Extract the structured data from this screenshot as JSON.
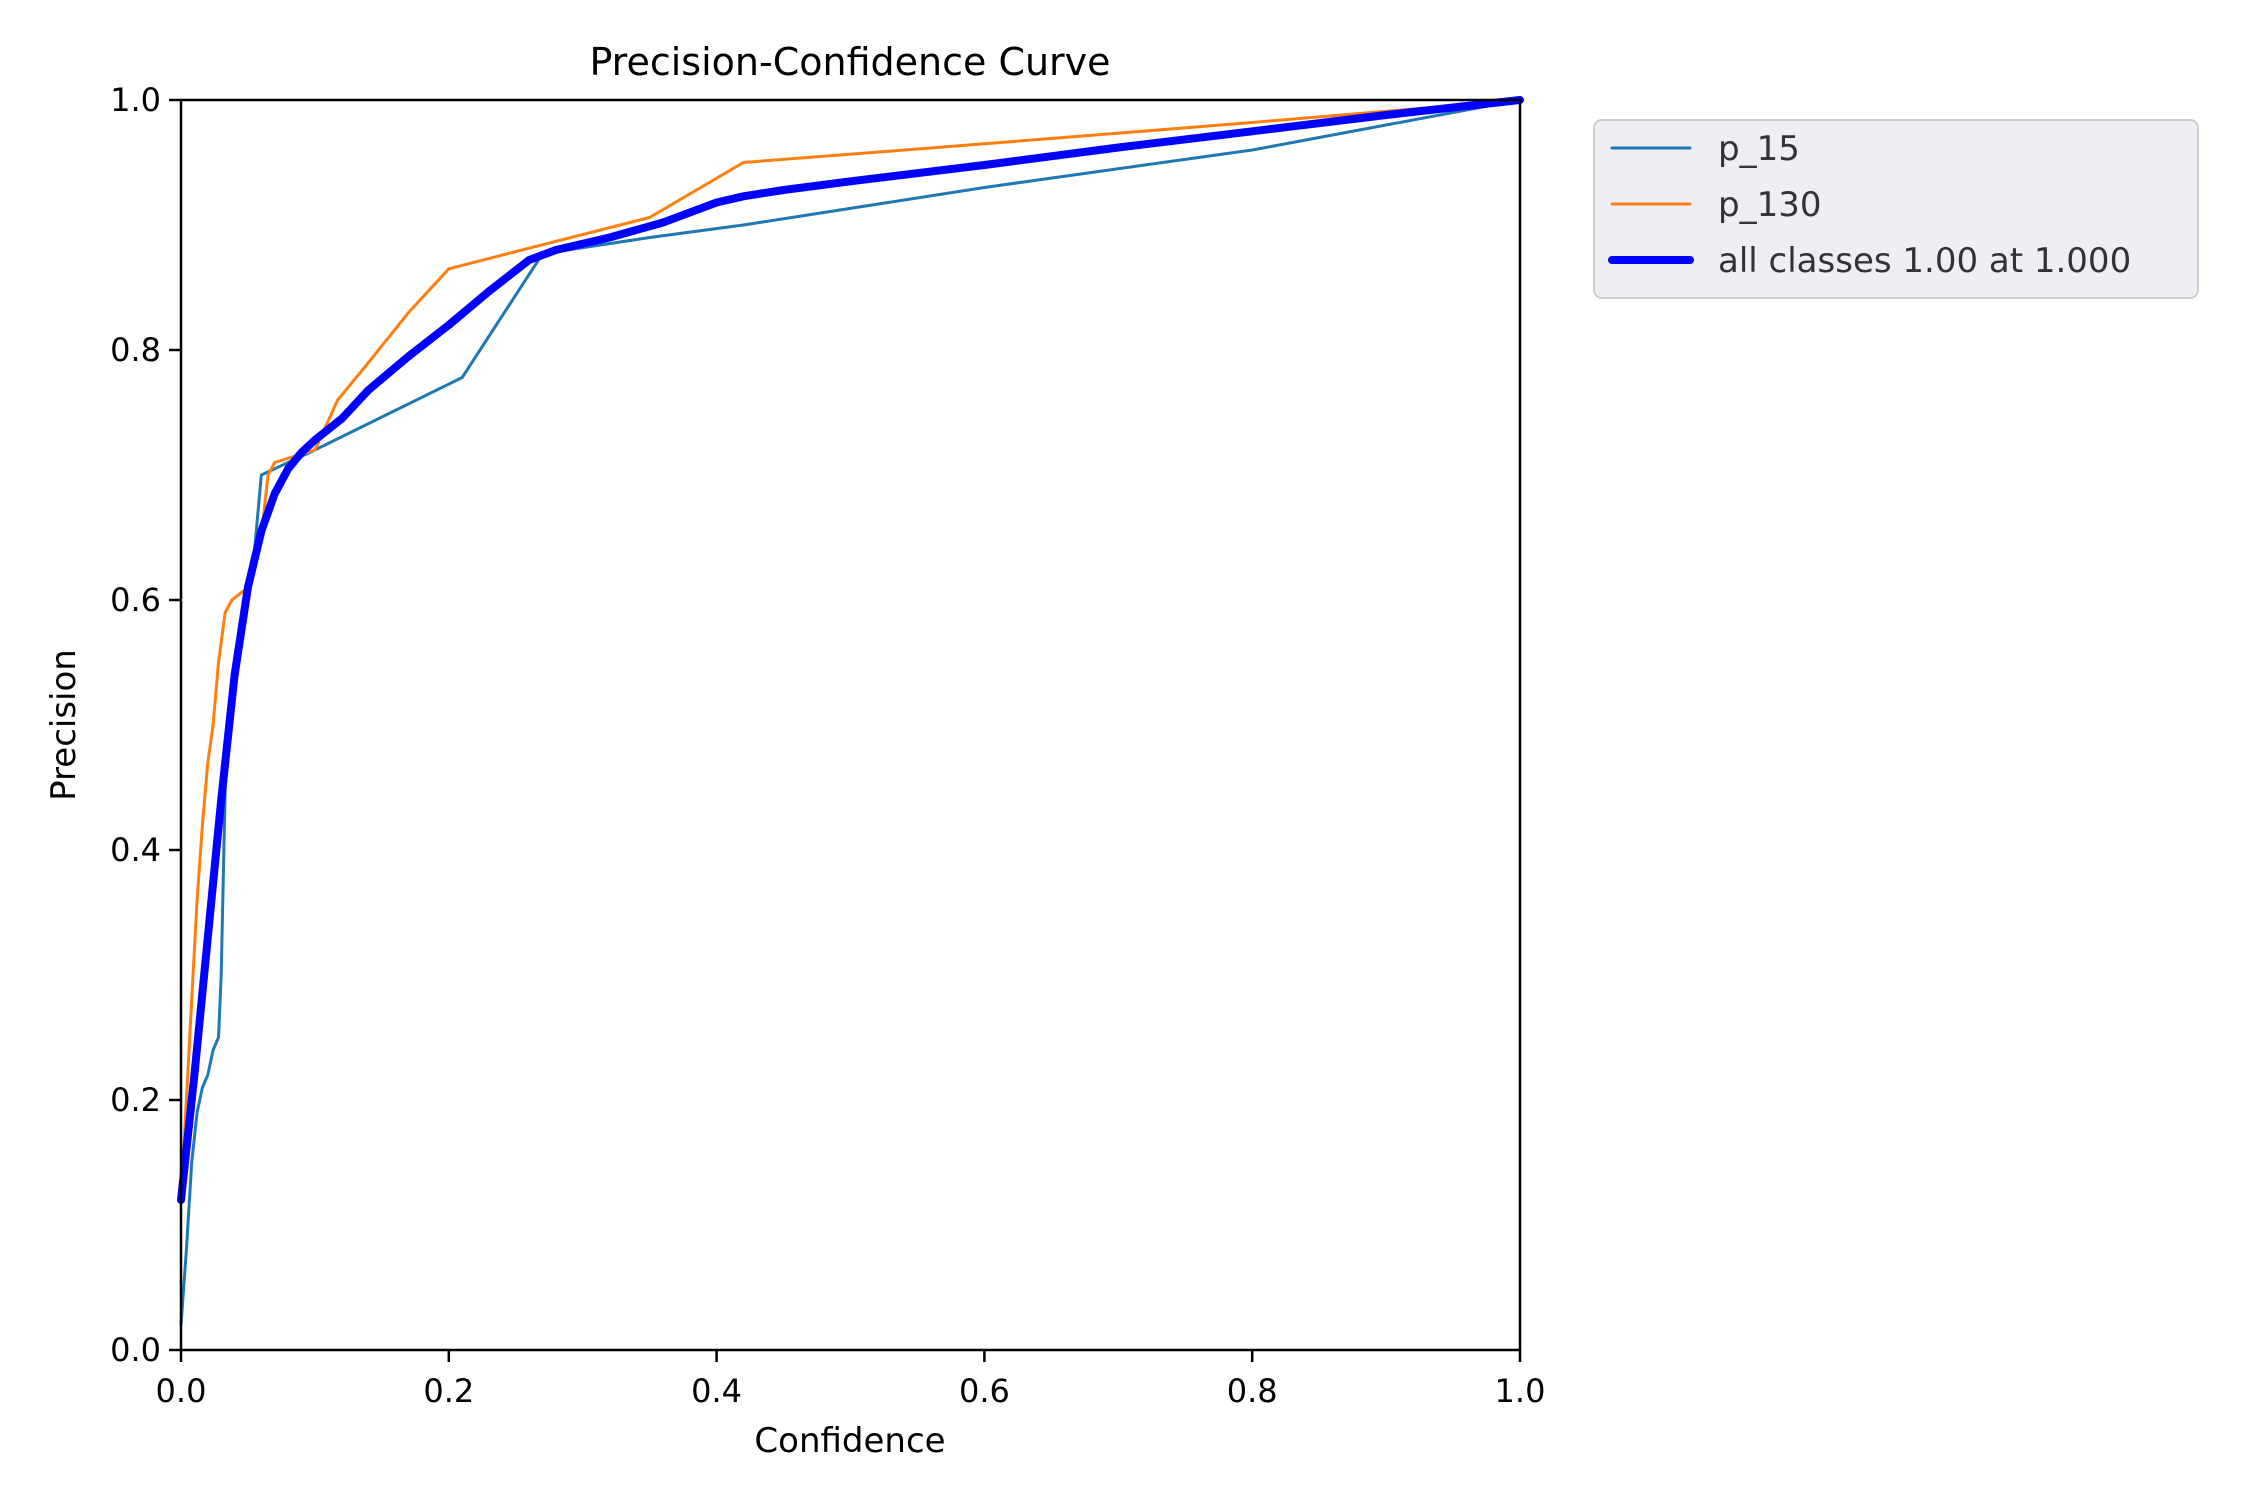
{
  "chart_data": {
    "type": "line",
    "title": "Precision-Confidence Curve",
    "xlabel": "Confidence",
    "ylabel": "Precision",
    "xlim": [
      0,
      1
    ],
    "ylim": [
      0,
      1
    ],
    "x_ticks": [
      "0.0",
      "0.2",
      "0.4",
      "0.6",
      "0.8",
      "1.0"
    ],
    "y_ticks": [
      "0.0",
      "0.2",
      "0.4",
      "0.6",
      "0.8",
      "1.0"
    ],
    "grid": false,
    "legend_position": "outside-top-right",
    "series": [
      {
        "name": "p_15",
        "color": "#1f77b4",
        "width": "thin",
        "x": [
          0.0,
          0.004,
          0.008,
          0.012,
          0.016,
          0.02,
          0.024,
          0.028,
          0.03,
          0.033,
          0.04,
          0.05,
          0.055,
          0.06,
          0.07,
          0.08,
          0.09,
          0.1,
          0.21,
          0.27,
          0.35,
          0.42,
          0.6,
          0.8,
          1.0
        ],
        "y": [
          0.02,
          0.08,
          0.15,
          0.19,
          0.21,
          0.22,
          0.24,
          0.25,
          0.3,
          0.45,
          0.53,
          0.6,
          0.64,
          0.7,
          0.705,
          0.71,
          0.715,
          0.72,
          0.778,
          0.877,
          0.89,
          0.9,
          0.93,
          0.96,
          1.0
        ]
      },
      {
        "name": "p_130",
        "color": "#ff7f0e",
        "width": "thin",
        "x": [
          0.0,
          0.004,
          0.008,
          0.012,
          0.016,
          0.02,
          0.024,
          0.028,
          0.033,
          0.038,
          0.05,
          0.055,
          0.06,
          0.065,
          0.07,
          0.1,
          0.117,
          0.14,
          0.17,
          0.2,
          0.28,
          0.35,
          0.42,
          0.6,
          0.8,
          1.0
        ],
        "y": [
          0.12,
          0.2,
          0.28,
          0.36,
          0.42,
          0.47,
          0.5,
          0.55,
          0.59,
          0.6,
          0.61,
          0.64,
          0.65,
          0.7,
          0.71,
          0.72,
          0.76,
          0.79,
          0.83,
          0.865,
          0.887,
          0.906,
          0.95,
          0.965,
          0.982,
          1.0
        ]
      },
      {
        "name": "all classes 1.00 at 1.000",
        "color": "#0000ff",
        "width": "thick",
        "x": [
          0.0,
          0.01,
          0.02,
          0.03,
          0.04,
          0.05,
          0.06,
          0.07,
          0.08,
          0.09,
          0.1,
          0.12,
          0.14,
          0.17,
          0.2,
          0.23,
          0.26,
          0.28,
          0.32,
          0.36,
          0.4,
          0.42,
          0.45,
          0.5,
          0.6,
          0.7,
          0.8,
          0.9,
          1.0
        ],
        "y": [
          0.12,
          0.22,
          0.33,
          0.44,
          0.54,
          0.61,
          0.655,
          0.685,
          0.705,
          0.718,
          0.728,
          0.745,
          0.768,
          0.795,
          0.82,
          0.847,
          0.872,
          0.88,
          0.89,
          0.902,
          0.918,
          0.923,
          0.928,
          0.935,
          0.948,
          0.962,
          0.975,
          0.988,
          1.0
        ]
      }
    ]
  }
}
